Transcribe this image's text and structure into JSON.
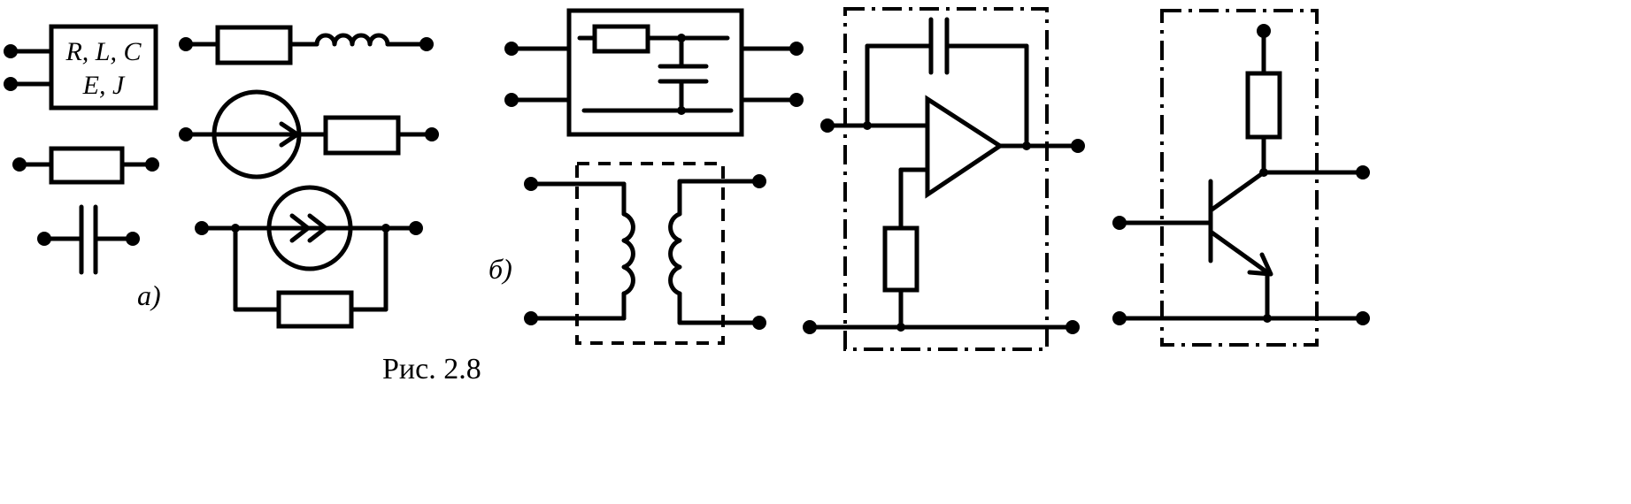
{
  "figure": {
    "caption": "Рис. 2.8",
    "label_a": "а)",
    "label_b": "б)",
    "generic_box": {
      "line1": "R, L, C",
      "line2": "E, J"
    }
  }
}
